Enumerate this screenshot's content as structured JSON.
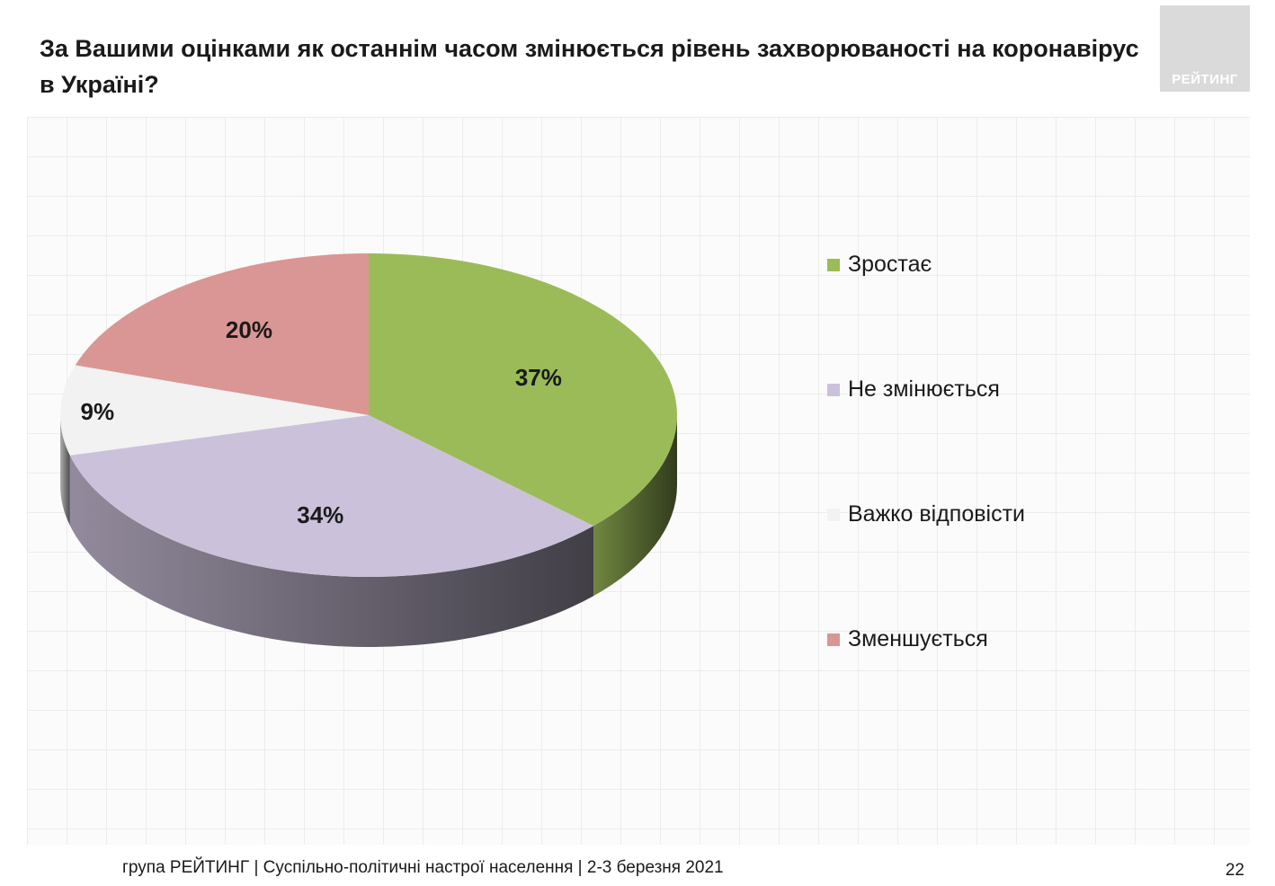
{
  "title": "За Вашими оцінками як останнім часом змінюється рівень захворюваності на коронавірус в Україні?",
  "logo_text": "РЕЙТИНГ",
  "footer": {
    "text": "група РЕЙТИНГ | Суспільно-політичні настрої населення  | 2-3 березня 2021",
    "page_number": "22"
  },
  "chart_data": {
    "type": "pie",
    "title": "За Вашими оцінками як останнім часом змінюється рівень захворюваності на коронавірус в Україні?",
    "legend_position": "right",
    "slices": [
      {
        "name": "Зростає",
        "value": 37,
        "label": "37%",
        "color": "#9bbb59"
      },
      {
        "name": "Не змінюється",
        "value": 34,
        "label": "34%",
        "color": "#ccc1da"
      },
      {
        "name": "Важко відповісти",
        "value": 9,
        "label": "9%",
        "color": "#f2f2f2"
      },
      {
        "name": "Зменшується",
        "value": 20,
        "label": "20%",
        "color": "#d99694"
      }
    ]
  }
}
